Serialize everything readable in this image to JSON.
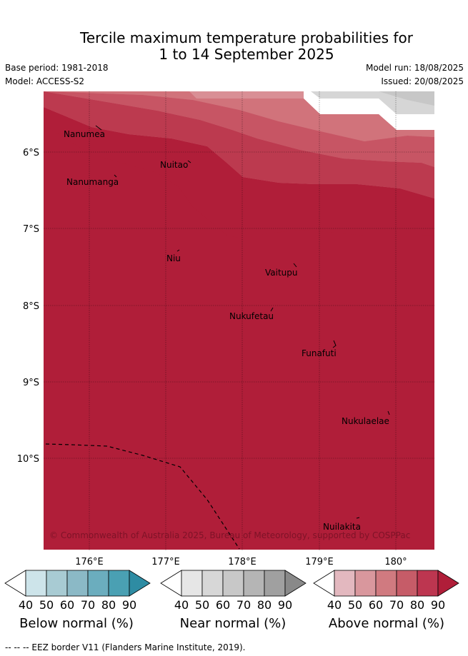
{
  "title": {
    "line1": "Tercile maximum temperature probabilities for",
    "line2": "1 to 14 September 2025"
  },
  "meta": {
    "base_period": "Base period: 1981-2018",
    "model": "Model: ACCESS-S2",
    "model_run": "Model run: 18/08/2025",
    "issued": "Issued: 20/08/2025"
  },
  "map": {
    "lat_labels": [
      "6°S",
      "7°S",
      "8°S",
      "9°S",
      "10°S"
    ],
    "lon_labels": [
      "176°E",
      "177°E",
      "178°E",
      "179°E",
      "180°"
    ],
    "places": {
      "nanumea": "Nanumea",
      "nuitao": "Nuitao",
      "nanumanga": "Nanumanga",
      "niu": "Niu",
      "vaitupu": "Vaitupu",
      "nukufetau": "Nukufetau",
      "funafuti": "Funafuti",
      "nukulaelae": "Nukulaelae",
      "nuilakita": "Nuilakita"
    },
    "copyright": "© Commonwealth of Australia 2025, Bureau of Meteorology, supported by COSPPac",
    "colors": {
      "above_90": "#b01e39",
      "above_80": "#bc3a4f",
      "above_70": "#c75564",
      "above_60": "#d1737b",
      "above_50": "#d98f95",
      "near_60": "#c7c7c7",
      "near_50": "#d6d6d6"
    }
  },
  "colorbars": {
    "ticks": [
      "40",
      "50",
      "60",
      "70",
      "80",
      "90"
    ],
    "below": {
      "title": "Below normal (%)",
      "colors": [
        "#cde4ea",
        "#a8cbd3",
        "#8bb9c6",
        "#6badbe",
        "#4aa0b3",
        "#2e8ca3"
      ]
    },
    "near": {
      "title": "Near normal (%)",
      "colors": [
        "#e6e6e6",
        "#d7d7d7",
        "#c8c8c8",
        "#b5b5b5",
        "#a0a0a0",
        "#898989"
      ]
    },
    "above": {
      "title": "Above normal (%)",
      "colors": [
        "#e3b8bf",
        "#d9979d",
        "#d07a80",
        "#c65c68",
        "#bd3650",
        "#b01e39"
      ]
    }
  },
  "footer": "-- -- -- EEZ border V11 (Flanders Marine Institute, 2019)."
}
